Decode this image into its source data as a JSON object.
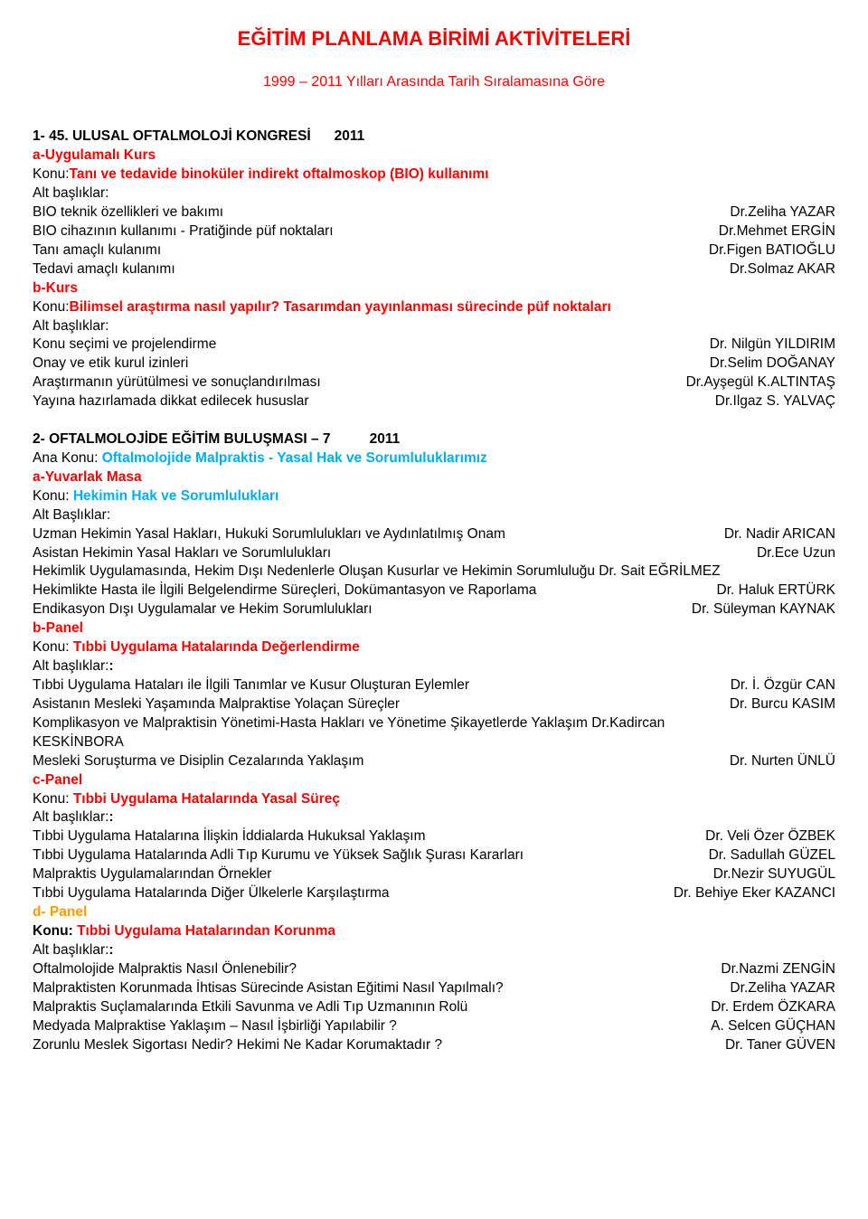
{
  "title": "EĞİTİM PLANLAMA BİRİMİ AKTİVİTELERİ",
  "subtitle": "1999 – 2011 Yılları Arasında Tarih Sıralamasına Göre",
  "s1": {
    "heading_prefix": "1- 45. ULUSAL OFTALMOLOJİ KONGRESİ",
    "heading_year": "2011",
    "a_kurs": "a-Uygulamalı Kurs",
    "konu1_prefix": "Konu:",
    "konu1": "Tanı ve tedavide binoküler indirekt oftalmoskop (BIO) kullanımı",
    "alt": "Alt başlıklar:",
    "r1_l": "BIO teknik özellikleri ve bakımı",
    "r1_r": "Dr.Zeliha YAZAR",
    "r2_l": "BIO cihazının kullanımı - Pratiğinde püf noktaları",
    "r2_r": "Dr.Mehmet ERGİN",
    "r3_l": "Tanı amaçlı kulanımı",
    "r3_r": "Dr.Figen BATIOĞLU",
    "r4_l": "Tedavi amaçlı kulanımı",
    "r4_r": "Dr.Solmaz AKAR",
    "b_kurs": "b-Kurs",
    "konu2_prefix": "Konu:",
    "konu2": "Bilimsel araştırma nasıl yapılır? Tasarımdan yayınlanması sürecinde püf noktaları",
    "r5_l": "Konu seçimi ve projelendirme",
    "r5_r": "Dr. Nilgün YILDIRIM",
    "r6_l": "Onay ve etik kurul izinleri",
    "r6_r": "Dr.Selim DOĞANAY",
    "r7_l": "Araştırmanın yürütülmesi ve sonuçlandırılması",
    "r7_r": "Dr.Ayşegül K.ALTINTAŞ",
    "r8_l": "Yayına hazırlamada dikkat edilecek hususlar",
    "r8_r": "Dr.Ilgaz S. YALVAÇ"
  },
  "s2": {
    "heading_prefix": "2- OFTALMOLOJİDE EĞİTİM BULUŞMASI – 7",
    "heading_year": "2011",
    "ana_konu_label": "Ana Konu: ",
    "ana_konu": "Oftalmolojide Malpraktis  -  Yasal Hak ve Sorumluluklarımız",
    "a_masa": "a-Yuvarlak Masa",
    "konuA_label": "Konu: ",
    "konuA": "Hekimin Hak ve Sorumlulukları",
    "alt_cap": "Alt Başlıklar:",
    "a_r1_l": "Uzman Hekimin Yasal Hakları,  Hukuki Sorumlulukları ve Aydınlatılmış Onam",
    "a_r1_r": "Dr. Nadir ARICAN",
    "a_r2_l": "Asistan Hekimin Yasal Hakları ve Sorumlulukları",
    "a_r2_r": "Dr.Ece Uzun",
    "a_r3_full": "Hekimlik Uygulamasında, Hekim Dışı Nedenlerle Oluşan Kusurlar ve Hekimin Sorumluluğu Dr. Sait EĞRİLMEZ",
    "a_r4_l": "Hekimlikte Hasta ile İlgili Belgelendirme Süreçleri, Dokümantasyon ve Raporlama",
    "a_r4_r": "Dr. Haluk ERTÜRK",
    "a_r5_l": "Endikasyon Dışı Uygulamalar ve Hekim Sorumlulukları",
    "a_r5_r": "Dr. Süleyman KAYNAK",
    "b_panel": "b-Panel",
    "konuB_label": "Konu: ",
    "konuB": "Tıbbi Uygulama Hatalarında  Değerlendirme",
    "alt_low": "Alt başlıklar:",
    "b_r1_l": "Tıbbi Uygulama Hataları ile İlgili Tanımlar ve Kusur Oluşturan Eylemler",
    "b_r1_r": "Dr. İ. Özgür CAN",
    "b_r2_l": "Asistanın Mesleki Yaşamında Malpraktise Yolaçan Süreçler",
    "b_r2_r": "Dr. Burcu KASIM",
    "b_r3_full": "Komplikasyon ve Malpraktisin Yönetimi-Hasta Hakları ve Yönetime Şikayetlerde Yaklaşım   Dr.Kadircan",
    "b_r3_cont": "KESKİNBORA",
    "b_r4_l": "Mesleki Soruşturma ve Disiplin Cezalarında Yaklaşım",
    "b_r4_r": "Dr. Nurten ÜNLÜ",
    "c_panel": "c-Panel",
    "konuC_label": "Konu: ",
    "konuC": "Tıbbi Uygulama Hatalarında  Yasal Süreç",
    "c_r1_l": "Tıbbi Uygulama Hatalarına İlişkin  İddialarda Hukuksal Yaklaşım",
    "c_r1_r": "Dr. Veli Özer ÖZBEK",
    "c_r2_l": "Tıbbi Uygulama Hatalarında Adli  Tıp Kurumu ve Yüksek Sağlık Şurası Kararları",
    "c_r2_r": "Dr. Sadullah GÜZEL",
    "c_r3_l": "Malpraktis  Uygulamalarından Örnekler",
    "c_r3_r": "Dr.Nezir SUYUGÜL",
    "c_r4_l": "Tıbbi Uygulama Hatalarında  Diğer Ülkelerle Karşılaştırma",
    "c_r4_r": "Dr. Behiye Eker KAZANCI",
    "d_panel": "d- Panel",
    "konuD_label": "Konu: ",
    "konuD": "Tıbbi Uygulama Hatalarından Korunma",
    "d_r1_l": "Oftalmolojide Malpraktis Nasıl Önlenebilir?",
    "d_r1_r": "Dr.Nazmi ZENGİN",
    "d_r2_l": "Malpraktisten Korunmada İhtisas Sürecinde Asistan Eğitimi  Nasıl Yapılmalı?",
    "d_r2_r": "Dr.Zeliha YAZAR",
    "d_r3_l": "Malpraktis  Suçlamalarında Etkili Savunma ve Adli Tıp Uzmanının Rolü",
    "d_r3_r": "Dr. Erdem ÖZKARA",
    "d_r4_l": "Medyada Malpraktise Yaklaşım – Nasıl  İşbirliği Yapılabilir ?",
    "d_r4_r": "A. Selcen GÜÇHAN",
    "d_r5_l": "Zorunlu Meslek Sigortası Nedir?  Hekimi Ne Kadar Korumaktadır ?",
    "d_r5_r": "Dr. Taner GÜVEN"
  }
}
